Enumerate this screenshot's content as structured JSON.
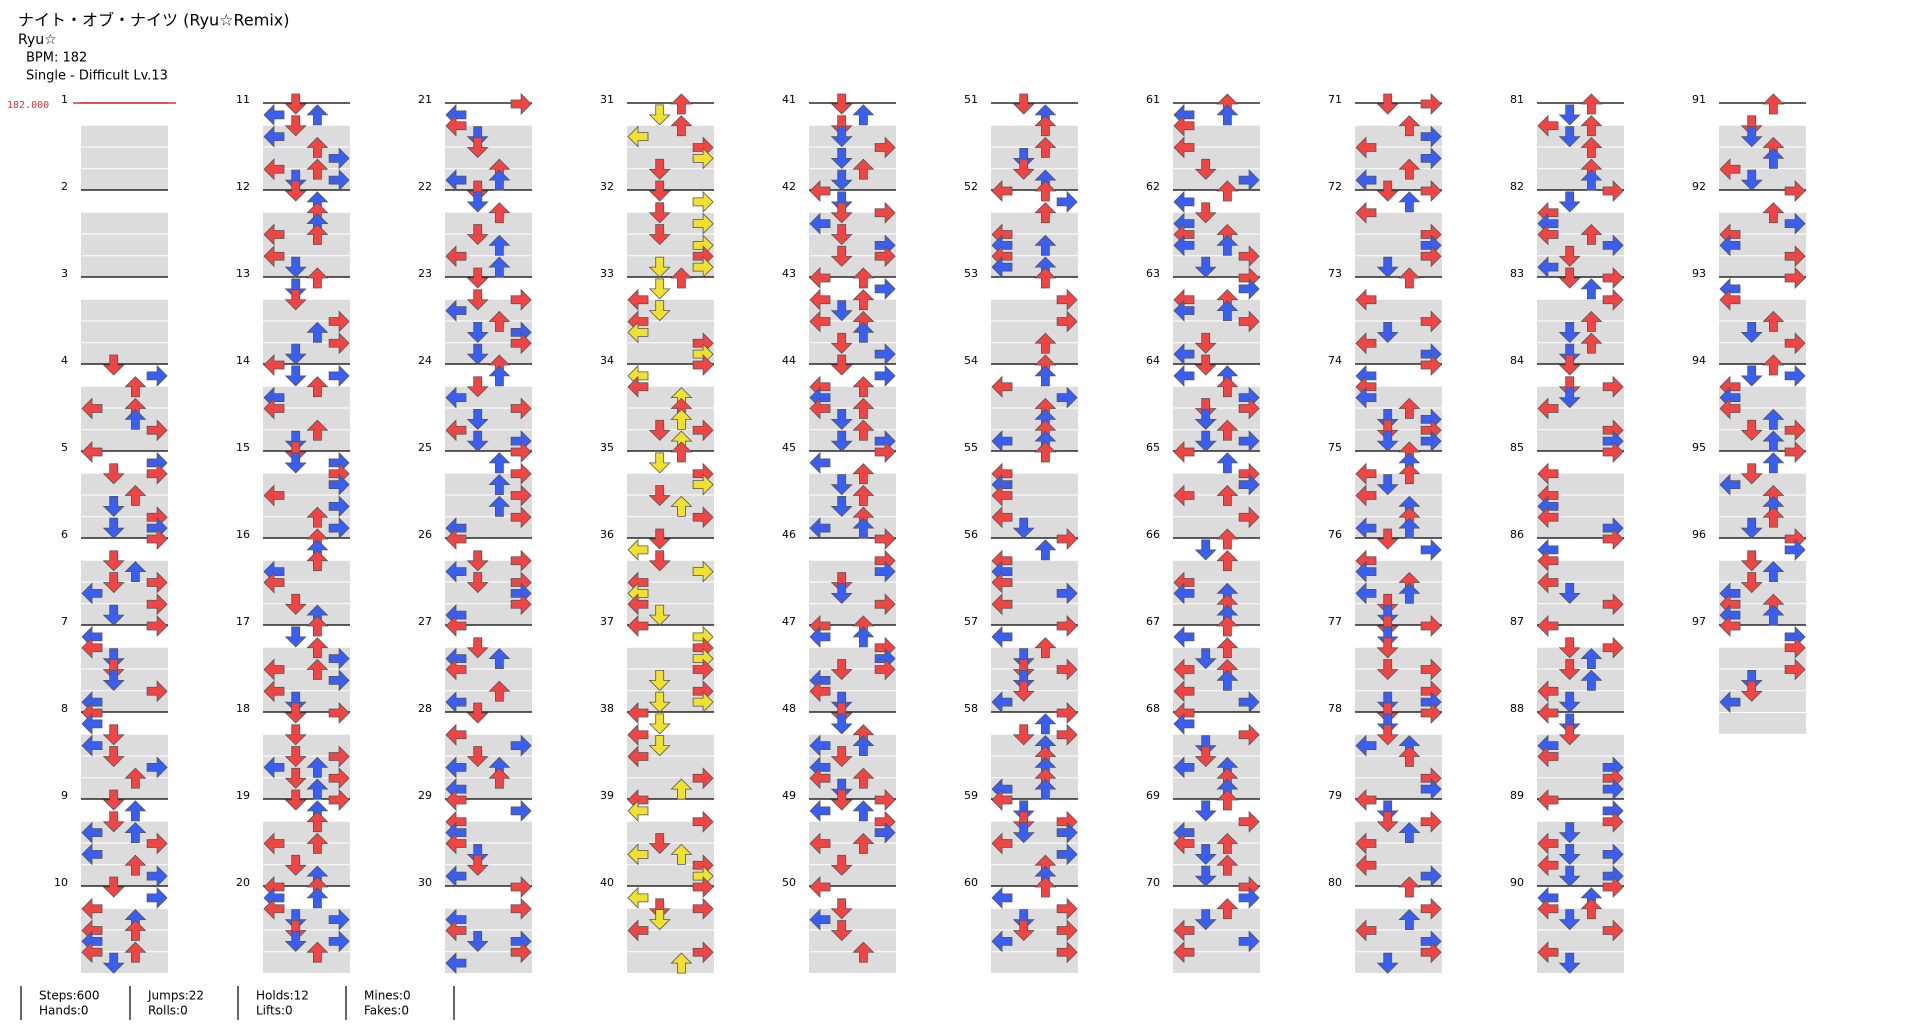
{
  "header": {
    "title": "ナイト・オブ・ナイツ (Ryu☆Remix)",
    "artist": "Ryu☆",
    "bpm": "BPM: 182",
    "difficulty": "Single - Difficult Lv.13"
  },
  "bpm_marker": "182.000",
  "measures": [
    1,
    2,
    3,
    4,
    5,
    6,
    7,
    8,
    9,
    10,
    11,
    12,
    13,
    14,
    15,
    16,
    17,
    18,
    19,
    20,
    21,
    22,
    23,
    24,
    25,
    26,
    27,
    28,
    29,
    30,
    31,
    32,
    33,
    34,
    35,
    36,
    37,
    38,
    39,
    40,
    41,
    42,
    43,
    44,
    45,
    46,
    47,
    48,
    49,
    50,
    51,
    52,
    53,
    54,
    55,
    56,
    57,
    58,
    59,
    60,
    61,
    62,
    63,
    64,
    65,
    66,
    67,
    68,
    69,
    70,
    71,
    72,
    73,
    74,
    75,
    76,
    77,
    78,
    79,
    80,
    81,
    82,
    83,
    84,
    85,
    86,
    87,
    88,
    89,
    90,
    91,
    92,
    93,
    94,
    95,
    96,
    97
  ],
  "stats": [
    [
      "Steps:600",
      "Hands:0"
    ],
    [
      "Jumps:22",
      "Rolls:0"
    ],
    [
      "Holds:12",
      "Lifts:0"
    ],
    [
      "Mines:0",
      "Fakes:0"
    ]
  ]
}
